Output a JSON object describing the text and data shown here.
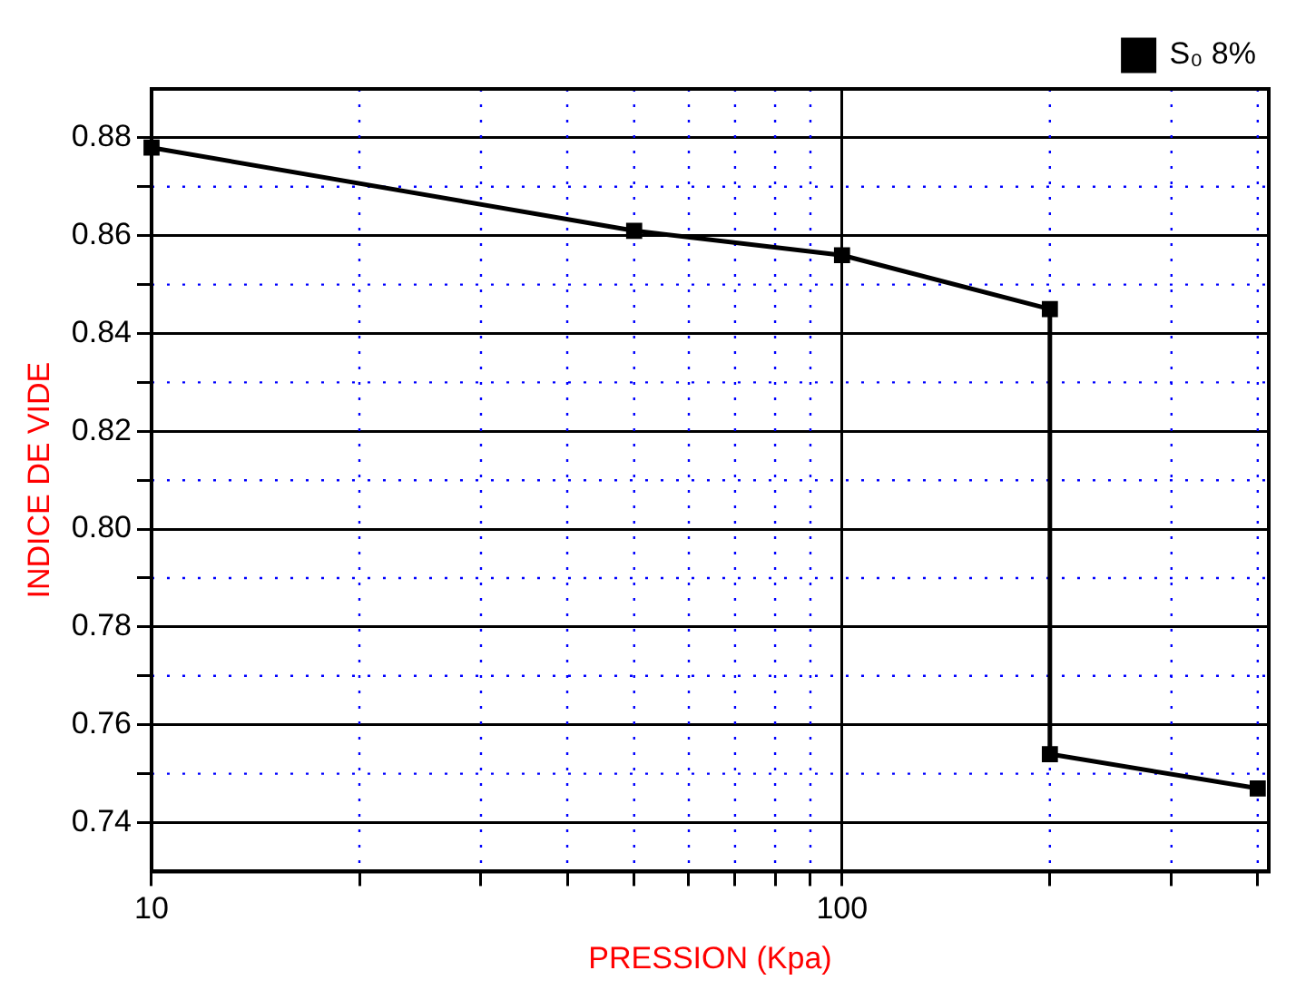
{
  "chart_data": {
    "type": "line",
    "xlabel": "PRESSION (Kpa)",
    "ylabel": "INDICE DE VIDE",
    "log": "x",
    "grid": true,
    "legend": "top right",
    "marker": "square",
    "line_style": "solid",
    "xlim": [
      10,
      415
    ],
    "xticks": [
      10,
      {
        "value": 20,
        "label": null
      },
      {
        "value": 30,
        "label": null
      },
      {
        "value": 40,
        "label": null
      },
      {
        "value": 50,
        "label": null
      },
      {
        "value": 60,
        "label": null
      },
      {
        "value": 70,
        "label": null
      },
      {
        "value": 80,
        "label": null
      },
      {
        "value": 90,
        "label": null
      },
      100,
      {
        "value": 200,
        "label": null
      },
      {
        "value": 300,
        "label": null
      },
      {
        "value": 400,
        "label": null
      }
    ],
    "ylim": [
      0.73,
      0.89
    ],
    "yticks": [
      {
        "value": 0.74,
        "label": "0.74"
      },
      {
        "value": 0.75,
        "label": null
      },
      {
        "value": 0.76,
        "label": "0.76"
      },
      {
        "value": 0.77,
        "label": null
      },
      {
        "value": 0.78,
        "label": "0.78"
      },
      {
        "value": 0.79,
        "label": null
      },
      {
        "value": 0.8,
        "label": "0.80"
      },
      {
        "value": 0.81,
        "label": null
      },
      {
        "value": 0.82,
        "label": "0.82"
      },
      {
        "value": 0.83,
        "label": null
      },
      {
        "value": 0.84,
        "label": "0.84"
      },
      {
        "value": 0.85,
        "label": null
      },
      {
        "value": 0.86,
        "label": "0.86"
      },
      {
        "value": 0.87,
        "label": null
      },
      {
        "value": 0.88,
        "label": "0.88"
      }
    ],
    "series": [
      {
        "name": "S₀ 8%",
        "color": "#000000",
        "x": [
          10,
          50,
          100,
          200,
          200,
          400
        ],
        "values": [
          0.878,
          0.861,
          0.856,
          0.845,
          0.754,
          0.747
        ]
      }
    ]
  }
}
